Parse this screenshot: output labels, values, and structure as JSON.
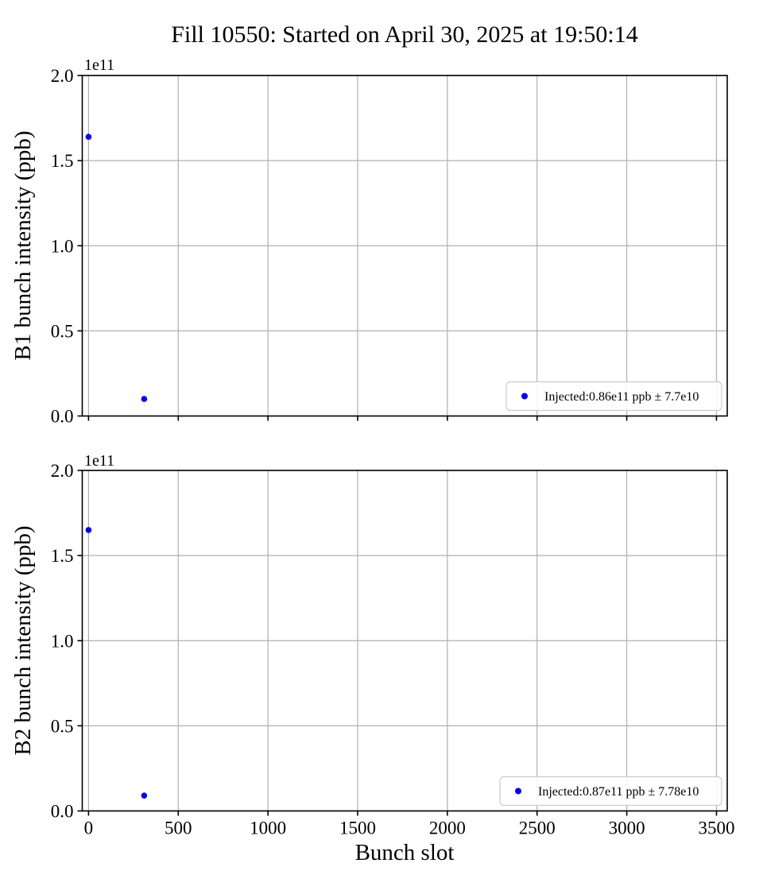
{
  "figure": {
    "title": "Fill 10550: Started on April 30, 2025 at 19:50:14",
    "xlabel": "Bunch slot",
    "background_color": "#ffffff"
  },
  "style": {
    "marker_color": "#0000ff",
    "grid_color": "#b0b0b0",
    "spine_color": "#000000",
    "legend_border_color": "#cccccc",
    "legend_fill_color": "#ffffff"
  },
  "chart_data": [
    {
      "type": "scatter",
      "ylabel": "B1 bunch intensity (ppb)",
      "offset_text": "1e11",
      "x": [
        0,
        310
      ],
      "y": [
        164000000000.0,
        10000000000.0
      ],
      "xlim": [
        -35,
        3560
      ],
      "ylim": [
        0,
        200000000000.0
      ],
      "xticks": [
        0,
        500,
        1000,
        1500,
        2000,
        2500,
        3000,
        3500
      ],
      "xtick_labels": [
        "0",
        "500",
        "1000",
        "1500",
        "2000",
        "2500",
        "3000",
        "3500"
      ],
      "yticks": [
        0,
        50000000000.0,
        100000000000.0,
        150000000000.0,
        200000000000.0
      ],
      "ytick_labels": [
        "0.0",
        "0.5",
        "1.0",
        "1.5",
        "2.0"
      ],
      "grid": true,
      "legend": {
        "label": "Injected:0.86e11 ppb ± 7.7e10",
        "position": "lower right"
      }
    },
    {
      "type": "scatter",
      "ylabel": "B2 bunch intensity (ppb)",
      "offset_text": "1e11",
      "x": [
        0,
        310
      ],
      "y": [
        165000000000.0,
        9000000000.0
      ],
      "xlim": [
        -35,
        3560
      ],
      "ylim": [
        0,
        200000000000.0
      ],
      "xticks": [
        0,
        500,
        1000,
        1500,
        2000,
        2500,
        3000,
        3500
      ],
      "xtick_labels": [
        "0",
        "500",
        "1000",
        "1500",
        "2000",
        "2500",
        "3000",
        "3500"
      ],
      "yticks": [
        0,
        50000000000.0,
        100000000000.0,
        150000000000.0,
        200000000000.0
      ],
      "ytick_labels": [
        "0.0",
        "0.5",
        "1.0",
        "1.5",
        "2.0"
      ],
      "grid": true,
      "legend": {
        "label": "Injected:0.87e11 ppb ± 7.78e10",
        "position": "lower right"
      }
    }
  ]
}
